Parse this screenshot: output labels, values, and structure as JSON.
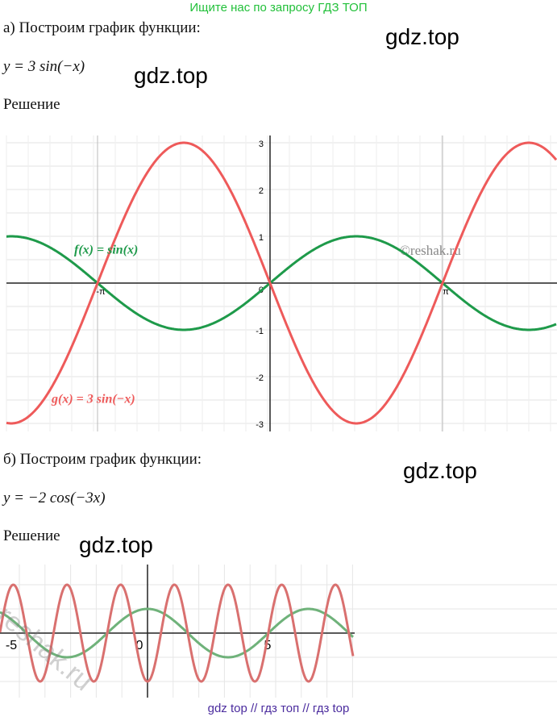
{
  "banner": "Ищите нас по запросу ГДЗ ТОП",
  "part_a": {
    "heading": "а) Построим график функции:",
    "formula": "y = 3 sin(−x)",
    "solution": "Решение",
    "graph": {
      "y_tick_labels": [
        "3",
        "2",
        "1",
        "0",
        "-1",
        "-2",
        "-3"
      ],
      "x_tick_labels": [
        "-π",
        "π"
      ],
      "labels": [
        "f(x) = sin(x)",
        "g(x) = 3 sin(−x)"
      ],
      "watermark": "©reshak.ru"
    }
  },
  "part_b": {
    "heading": "б) Построим график функции:",
    "formula": "y = −2 cos(−3x)",
    "solution": "Решение",
    "graph": {
      "x_tick_labels": [
        "-5",
        "0",
        "5"
      ],
      "watermark": "reshak.ru"
    }
  },
  "watermarks": [
    "gdz.top",
    "gdz.top",
    "gdz.top",
    "gdz.top"
  ],
  "footer": "gdz top  //  гдз топ  //  гдз top"
}
